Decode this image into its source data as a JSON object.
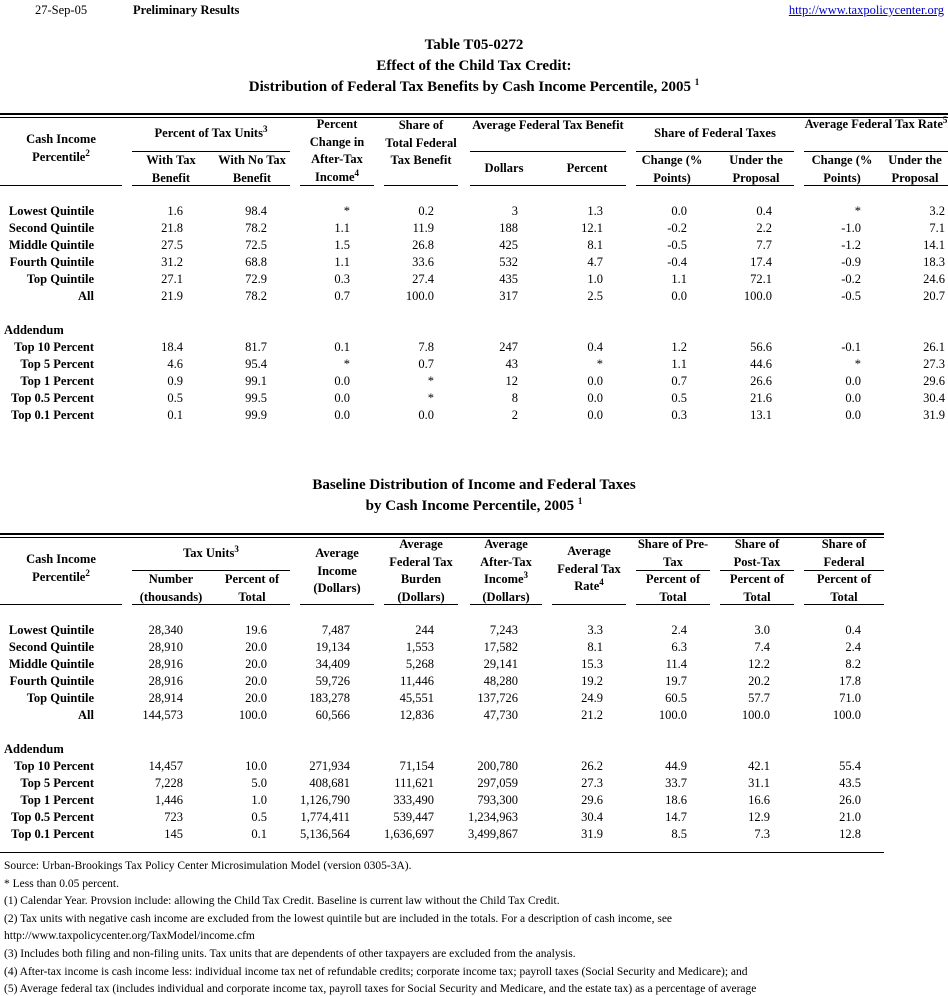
{
  "header": {
    "date": "27-Sep-05",
    "status": "Preliminary Results",
    "link": "http://www.taxpolicycenter.org"
  },
  "title": {
    "line1": "Table T05-0272",
    "line2": "Effect of the Child Tax Credit:",
    "line3": "Distribution of Federal Tax Benefits by Cash Income Percentile, 2005",
    "line3_sup": "1"
  },
  "table1": {
    "headers": [
      {
        "text": "Cash Income Percentile",
        "sup": "2"
      },
      {
        "text": "Percent of Tax Units",
        "sup": "3"
      },
      {
        "text": "With Tax Benefit"
      },
      {
        "text": "With No Tax Benefit"
      },
      {
        "text": "Percent Change in After-Tax Income",
        "sup": "4"
      },
      {
        "text": "Share of Total Federal Tax Benefit"
      },
      {
        "text": "Average Federal Tax Benefit"
      },
      {
        "text": "Dollars"
      },
      {
        "text": "Percent"
      },
      {
        "text": "Share of Federal Taxes"
      },
      {
        "text": "Change (% Points)"
      },
      {
        "text": "Under the Proposal"
      },
      {
        "text": "Average Federal Tax Rate",
        "sup": "5"
      },
      {
        "text": "Change (% Points)"
      },
      {
        "text": "Under the Proposal"
      }
    ],
    "addendum_label": "Addendum",
    "rows": [
      {
        "label": "Lowest Quintile",
        "values": [
          "1.6",
          "98.4",
          "*",
          "0.2",
          "3",
          "1.3",
          "0.0",
          "0.4",
          "*",
          "3.2"
        ]
      },
      {
        "label": "Second Quintile",
        "values": [
          "21.8",
          "78.2",
          "1.1",
          "11.9",
          "188",
          "12.1",
          "-0.2",
          "2.2",
          "-1.0",
          "7.1"
        ]
      },
      {
        "label": "Middle Quintile",
        "values": [
          "27.5",
          "72.5",
          "1.5",
          "26.8",
          "425",
          "8.1",
          "-0.5",
          "7.7",
          "-1.2",
          "14.1"
        ]
      },
      {
        "label": "Fourth Quintile",
        "values": [
          "31.2",
          "68.8",
          "1.1",
          "33.6",
          "532",
          "4.7",
          "-0.4",
          "17.4",
          "-0.9",
          "18.3"
        ]
      },
      {
        "label": "Top Quintile",
        "values": [
          "27.1",
          "72.9",
          "0.3",
          "27.4",
          "435",
          "1.0",
          "1.1",
          "72.1",
          "-0.2",
          "24.6"
        ]
      },
      {
        "label": "All",
        "values": [
          "21.9",
          "78.2",
          "0.7",
          "100.0",
          "317",
          "2.5",
          "0.0",
          "100.0",
          "-0.5",
          "20.7"
        ]
      }
    ],
    "addendum_rows": [
      {
        "label": "Top 10 Percent",
        "values": [
          "18.4",
          "81.7",
          "0.1",
          "7.8",
          "247",
          "0.4",
          "1.2",
          "56.6",
          "-0.1",
          "26.1"
        ]
      },
      {
        "label": "Top 5 Percent",
        "values": [
          "4.6",
          "95.4",
          "*",
          "0.7",
          "43",
          "*",
          "1.1",
          "44.6",
          "*",
          "27.3"
        ]
      },
      {
        "label": "Top 1 Percent",
        "values": [
          "0.9",
          "99.1",
          "0.0",
          "*",
          "12",
          "0.0",
          "0.7",
          "26.6",
          "0.0",
          "29.6"
        ]
      },
      {
        "label": "Top 0.5 Percent",
        "values": [
          "0.5",
          "99.5",
          "0.0",
          "*",
          "8",
          "0.0",
          "0.5",
          "21.6",
          "0.0",
          "30.4"
        ]
      },
      {
        "label": "Top 0.1 Percent",
        "values": [
          "0.1",
          "99.9",
          "0.0",
          "0.0",
          "2",
          "0.0",
          "0.3",
          "13.1",
          "0.0",
          "31.9"
        ]
      }
    ]
  },
  "title2": {
    "line1": "Baseline Distribution of Income and Federal Taxes",
    "line2": "by Cash Income Percentile, 2005",
    "line2_sup": "1"
  },
  "table2": {
    "headers": [
      {
        "text": "Cash Income Percentile",
        "sup": "2"
      },
      {
        "text": "Tax Units",
        "sup": "3"
      },
      {
        "text": "Number (thousands)"
      },
      {
        "text": "Percent of Total"
      },
      {
        "text": "Average Income (Dollars)"
      },
      {
        "text": "Average Federal Tax Burden (Dollars)"
      },
      {
        "text": "Average After-Tax Income",
        "sup": "3",
        "after": "(Dollars)"
      },
      {
        "text": "Average Federal Tax Rate",
        "sup": "4"
      },
      {
        "text": "Share of Pre-Tax"
      },
      {
        "text": "Percent of Total"
      },
      {
        "text": "Share of Post-Tax"
      },
      {
        "text": "Percent of Total"
      },
      {
        "text": "Share of Federal"
      },
      {
        "text": "Percent of Total"
      }
    ],
    "addendum_label": "Addendum",
    "rows": [
      {
        "label": "Lowest Quintile",
        "values": [
          "28,340",
          "19.6",
          "7,487",
          "244",
          "7,243",
          "3.3",
          "2.4",
          "3.0",
          "0.4"
        ]
      },
      {
        "label": "Second Quintile",
        "values": [
          "28,910",
          "20.0",
          "19,134",
          "1,553",
          "17,582",
          "8.1",
          "6.3",
          "7.4",
          "2.4"
        ]
      },
      {
        "label": "Middle Quintile",
        "values": [
          "28,916",
          "20.0",
          "34,409",
          "5,268",
          "29,141",
          "15.3",
          "11.4",
          "12.2",
          "8.2"
        ]
      },
      {
        "label": "Fourth Quintile",
        "values": [
          "28,916",
          "20.0",
          "59,726",
          "11,446",
          "48,280",
          "19.2",
          "19.7",
          "20.2",
          "17.8"
        ]
      },
      {
        "label": "Top Quintile",
        "values": [
          "28,914",
          "20.0",
          "183,278",
          "45,551",
          "137,726",
          "24.9",
          "60.5",
          "57.7",
          "71.0"
        ]
      },
      {
        "label": "All",
        "values": [
          "144,573",
          "100.0",
          "60,566",
          "12,836",
          "47,730",
          "21.2",
          "100.0",
          "100.0",
          "100.0"
        ]
      }
    ],
    "addendum_rows": [
      {
        "label": "Top 10 Percent",
        "values": [
          "14,457",
          "10.0",
          "271,934",
          "71,154",
          "200,780",
          "26.2",
          "44.9",
          "42.1",
          "55.4"
        ]
      },
      {
        "label": "Top 5 Percent",
        "values": [
          "7,228",
          "5.0",
          "408,681",
          "111,621",
          "297,059",
          "27.3",
          "33.7",
          "31.1",
          "43.5"
        ]
      },
      {
        "label": "Top 1 Percent",
        "values": [
          "1,446",
          "1.0",
          "1,126,790",
          "333,490",
          "793,300",
          "29.6",
          "18.6",
          "16.6",
          "26.0"
        ]
      },
      {
        "label": "Top 0.5 Percent",
        "values": [
          "723",
          "0.5",
          "1,774,411",
          "539,447",
          "1,234,963",
          "30.4",
          "14.7",
          "12.9",
          "21.0"
        ]
      },
      {
        "label": "Top 0.1 Percent",
        "values": [
          "145",
          "0.1",
          "5,136,564",
          "1,636,697",
          "3,499,867",
          "31.9",
          "8.5",
          "7.3",
          "12.8"
        ]
      }
    ]
  },
  "footnotes": [
    "Source: Urban-Brookings Tax Policy Center Microsimulation Model (version 0305-3A).",
    "* Less than 0.05 percent.",
    "(1) Calendar Year. Provsion include: allowing the Child Tax Credit. Baseline is current law without the Child Tax Credit.",
    "(2) Tax units with negative cash income are excluded from the lowest quintile but are included in the totals. For a description of cash income, see",
    "http://www.taxpolicycenter.org/TaxModel/income.cfm",
    "(3) Includes both filing and non-filing units.  Tax units that are dependents of other taxpayers are excluded from the analysis.",
    "(4) After-tax income is cash income less: individual income tax net of refundable credits; corporate income tax; payroll taxes (Social Security and Medicare); and",
    "(5) Average federal tax (includes individual and corporate income tax, payroll taxes for Social Security and Medicare, and the estate tax) as a percentage of average"
  ]
}
